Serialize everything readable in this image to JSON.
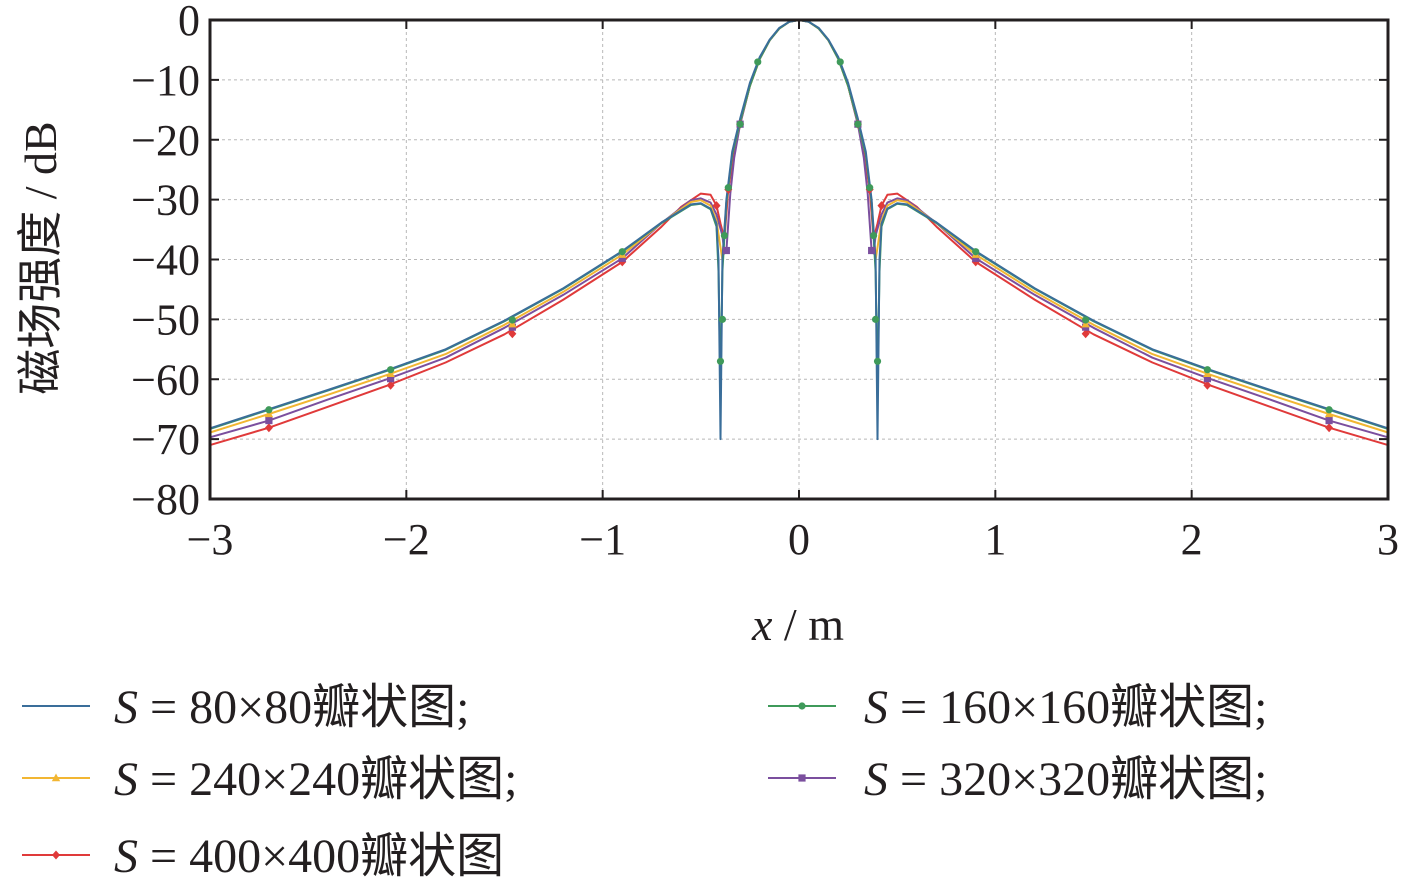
{
  "chart_data": {
    "type": "line",
    "xlabel": "x / m",
    "xlabel_var": "x",
    "xlabel_unit": " / m",
    "ylabel": "磁场强度 / dB",
    "xlim": [
      -3,
      3
    ],
    "ylim": [
      -80,
      0
    ],
    "xticks": [
      -3,
      -2,
      -1,
      0,
      1,
      2,
      3
    ],
    "xtick_labels": [
      "−3",
      "−2",
      "−1",
      "0",
      "1",
      "2",
      "3"
    ],
    "yticks": [
      0,
      -10,
      -20,
      -30,
      -40,
      -50,
      -60,
      -70,
      -80
    ],
    "ytick_labels": [
      "0",
      "−10",
      "−20",
      "−30",
      "−40",
      "−50",
      "−60",
      "−70",
      "−80"
    ],
    "grid": true,
    "legend_position": "bottom",
    "legend_symbol": "S",
    "series": [
      {
        "name": "S = 80×80瓣状图;",
        "label_rest": " = 80×80瓣状图;",
        "color": "#3a6e9a",
        "marker": "none",
        "points": [
          [
            -3,
            -68.2
          ],
          [
            -2.7,
            -65.0
          ],
          [
            -2.4,
            -61.8
          ],
          [
            -2.1,
            -58.5
          ],
          [
            -1.8,
            -55.0
          ],
          [
            -1.5,
            -50.2
          ],
          [
            -1.2,
            -44.8
          ],
          [
            -0.9,
            -38.6
          ],
          [
            -0.7,
            -33.8
          ],
          [
            -0.55,
            -30.8
          ],
          [
            -0.5,
            -30.6
          ],
          [
            -0.45,
            -31.5
          ],
          [
            -0.42,
            -34
          ],
          [
            -0.41,
            -40
          ],
          [
            -0.4,
            -70
          ],
          [
            -0.39,
            -40
          ],
          [
            -0.37,
            -30
          ],
          [
            -0.34,
            -22
          ],
          [
            -0.3,
            -16.5
          ],
          [
            -0.25,
            -10.5
          ],
          [
            -0.2,
            -6.2
          ],
          [
            -0.15,
            -3.3
          ],
          [
            -0.1,
            -1.3
          ],
          [
            -0.05,
            -0.3
          ],
          [
            0,
            0
          ],
          [
            0.05,
            -0.3
          ],
          [
            0.1,
            -1.3
          ],
          [
            0.15,
            -3.3
          ],
          [
            0.2,
            -6.2
          ],
          [
            0.25,
            -10.5
          ],
          [
            0.3,
            -16.5
          ],
          [
            0.34,
            -22
          ],
          [
            0.37,
            -30
          ],
          [
            0.39,
            -40
          ],
          [
            0.4,
            -70
          ],
          [
            0.41,
            -40
          ],
          [
            0.42,
            -34
          ],
          [
            0.45,
            -31.5
          ],
          [
            0.5,
            -30.6
          ],
          [
            0.55,
            -30.8
          ],
          [
            0.7,
            -33.8
          ],
          [
            0.9,
            -38.6
          ],
          [
            1.2,
            -44.8
          ],
          [
            1.5,
            -50.2
          ],
          [
            1.8,
            -55.0
          ],
          [
            2.1,
            -58.5
          ],
          [
            2.4,
            -61.8
          ],
          [
            2.7,
            -65.0
          ],
          [
            3,
            -68.2
          ]
        ]
      },
      {
        "name": "S = 160×160瓣状图;",
        "label_rest": " = 160×160瓣状图;",
        "color": "#3f9a5a",
        "marker": "circle",
        "markers": [
          [
            -2.7,
            -65.1
          ],
          [
            -2.08,
            -58.4
          ],
          [
            -1.46,
            -50.1
          ],
          [
            -0.9,
            -38.7
          ],
          [
            -0.4,
            -57
          ],
          [
            -0.39,
            -50
          ],
          [
            -0.38,
            -36
          ],
          [
            -0.36,
            -28
          ],
          [
            -0.3,
            -17.4
          ],
          [
            -0.21,
            -7
          ],
          [
            0.21,
            -7
          ],
          [
            0.3,
            -17.4
          ],
          [
            0.36,
            -28
          ],
          [
            0.38,
            -36
          ],
          [
            0.39,
            -50
          ],
          [
            0.4,
            -57
          ],
          [
            0.9,
            -38.7
          ],
          [
            1.46,
            -50.1
          ],
          [
            2.08,
            -58.4
          ],
          [
            2.7,
            -65.1
          ]
        ],
        "points": [
          [
            -3,
            -68.3
          ],
          [
            -2.7,
            -65.1
          ],
          [
            -2.4,
            -61.9
          ],
          [
            -2.1,
            -58.6
          ],
          [
            -1.8,
            -55.1
          ],
          [
            -1.5,
            -50.3
          ],
          [
            -1.2,
            -44.9
          ],
          [
            -0.9,
            -38.7
          ],
          [
            -0.7,
            -33.9
          ],
          [
            -0.55,
            -30.9
          ],
          [
            -0.5,
            -30.7
          ],
          [
            -0.45,
            -31.6
          ],
          [
            -0.42,
            -34.5
          ],
          [
            -0.41,
            -42
          ],
          [
            -0.4,
            -62
          ],
          [
            -0.39,
            -42
          ],
          [
            -0.37,
            -30.5
          ],
          [
            -0.34,
            -22.5
          ],
          [
            -0.3,
            -17.0
          ],
          [
            -0.25,
            -11
          ],
          [
            -0.2,
            -6.5
          ],
          [
            -0.15,
            -3.4
          ],
          [
            -0.1,
            -1.4
          ],
          [
            -0.05,
            -0.3
          ],
          [
            0,
            0
          ],
          [
            0.05,
            -0.3
          ],
          [
            0.1,
            -1.4
          ],
          [
            0.15,
            -3.4
          ],
          [
            0.2,
            -6.5
          ],
          [
            0.25,
            -11
          ],
          [
            0.3,
            -17.0
          ],
          [
            0.34,
            -22.5
          ],
          [
            0.37,
            -30.5
          ],
          [
            0.39,
            -42
          ],
          [
            0.4,
            -62
          ],
          [
            0.41,
            -42
          ],
          [
            0.42,
            -34.5
          ],
          [
            0.45,
            -31.6
          ],
          [
            0.5,
            -30.7
          ],
          [
            0.55,
            -30.9
          ],
          [
            0.7,
            -33.9
          ],
          [
            0.9,
            -38.7
          ],
          [
            1.2,
            -44.9
          ],
          [
            1.5,
            -50.3
          ],
          [
            1.8,
            -55.1
          ],
          [
            2.1,
            -58.6
          ],
          [
            2.4,
            -61.9
          ],
          [
            2.7,
            -65.1
          ],
          [
            3,
            -68.3
          ]
        ]
      },
      {
        "name": "S = 240×240瓣状图;",
        "label_rest": " = 240×240瓣状图;",
        "color": "#f2b632",
        "marker": "triangle",
        "markers": [
          [
            -2.7,
            -65.8
          ],
          [
            -2.08,
            -59.1
          ],
          [
            -1.46,
            -50.8
          ],
          [
            -0.9,
            -39.2
          ],
          [
            0.9,
            -39.2
          ],
          [
            1.46,
            -50.8
          ],
          [
            2.08,
            -59.1
          ],
          [
            2.7,
            -65.8
          ]
        ],
        "points": [
          [
            -3,
            -68.9
          ],
          [
            -2.7,
            -65.8
          ],
          [
            -2.4,
            -62.6
          ],
          [
            -2.1,
            -59.3
          ],
          [
            -1.8,
            -55.8
          ],
          [
            -1.5,
            -50.9
          ],
          [
            -1.2,
            -45.4
          ],
          [
            -0.9,
            -39.2
          ],
          [
            -0.7,
            -33.9
          ],
          [
            -0.55,
            -30.4
          ],
          [
            -0.5,
            -30.1
          ],
          [
            -0.45,
            -31.0
          ],
          [
            -0.42,
            -33.5
          ],
          [
            -0.4,
            -38
          ],
          [
            -0.39,
            -40
          ],
          [
            -0.37,
            -30.5
          ],
          [
            -0.34,
            -22.5
          ],
          [
            -0.3,
            -17.0
          ],
          [
            -0.25,
            -11
          ],
          [
            -0.2,
            -6.5
          ],
          [
            -0.15,
            -3.4
          ],
          [
            -0.1,
            -1.4
          ],
          [
            -0.05,
            -0.3
          ],
          [
            0,
            0
          ],
          [
            0.05,
            -0.3
          ],
          [
            0.1,
            -1.4
          ],
          [
            0.15,
            -3.4
          ],
          [
            0.2,
            -6.5
          ],
          [
            0.25,
            -11
          ],
          [
            0.3,
            -17.0
          ],
          [
            0.34,
            -22.5
          ],
          [
            0.37,
            -30.5
          ],
          [
            0.39,
            -40
          ],
          [
            0.4,
            -38
          ],
          [
            0.42,
            -33.5
          ],
          [
            0.45,
            -31.0
          ],
          [
            0.5,
            -30.1
          ],
          [
            0.55,
            -30.4
          ],
          [
            0.7,
            -33.9
          ],
          [
            0.9,
            -39.2
          ],
          [
            1.2,
            -45.4
          ],
          [
            1.5,
            -50.9
          ],
          [
            1.8,
            -55.8
          ],
          [
            2.1,
            -59.3
          ],
          [
            2.4,
            -62.6
          ],
          [
            2.7,
            -65.8
          ],
          [
            3,
            -68.9
          ]
        ]
      },
      {
        "name": "S = 320×320瓣状图;",
        "label_rest": " = 320×320瓣状图;",
        "color": "#7b4f9e",
        "marker": "square",
        "markers": [
          [
            -2.7,
            -66.9
          ],
          [
            -2.08,
            -59.9
          ],
          [
            -1.46,
            -51.3
          ],
          [
            -0.9,
            -39.8
          ],
          [
            -0.37,
            -38.5
          ],
          [
            -0.3,
            -17.4
          ],
          [
            0.3,
            -17.4
          ],
          [
            0.37,
            -38.5
          ],
          [
            0.9,
            -39.8
          ],
          [
            1.46,
            -51.3
          ],
          [
            2.08,
            -59.9
          ],
          [
            2.7,
            -66.9
          ]
        ],
        "points": [
          [
            -3,
            -69.7
          ],
          [
            -2.7,
            -66.9
          ],
          [
            -2.4,
            -63.4
          ],
          [
            -2.1,
            -60.0
          ],
          [
            -1.8,
            -56.4
          ],
          [
            -1.5,
            -51.4
          ],
          [
            -1.2,
            -45.9
          ],
          [
            -0.9,
            -39.8
          ],
          [
            -0.7,
            -33.9
          ],
          [
            -0.55,
            -30.1
          ],
          [
            -0.5,
            -29.8
          ],
          [
            -0.45,
            -30.5
          ],
          [
            -0.42,
            -32.5
          ],
          [
            -0.39,
            -36
          ],
          [
            -0.38,
            -39
          ],
          [
            -0.37,
            -38.5
          ],
          [
            -0.35,
            -29
          ],
          [
            -0.33,
            -23
          ],
          [
            -0.3,
            -17.4
          ],
          [
            -0.25,
            -11
          ],
          [
            -0.2,
            -6.5
          ],
          [
            -0.15,
            -3.4
          ],
          [
            -0.1,
            -1.4
          ],
          [
            -0.05,
            -0.3
          ],
          [
            0,
            0
          ],
          [
            0.05,
            -0.3
          ],
          [
            0.1,
            -1.4
          ],
          [
            0.15,
            -3.4
          ],
          [
            0.2,
            -6.5
          ],
          [
            0.25,
            -11
          ],
          [
            0.3,
            -17.4
          ],
          [
            0.33,
            -23
          ],
          [
            0.35,
            -29
          ],
          [
            0.37,
            -38.5
          ],
          [
            0.38,
            -39
          ],
          [
            0.39,
            -36
          ],
          [
            0.42,
            -32.5
          ],
          [
            0.45,
            -30.5
          ],
          [
            0.5,
            -29.8
          ],
          [
            0.55,
            -30.1
          ],
          [
            0.7,
            -33.9
          ],
          [
            0.9,
            -39.8
          ],
          [
            1.2,
            -45.9
          ],
          [
            1.5,
            -51.4
          ],
          [
            1.8,
            -56.4
          ],
          [
            2.1,
            -60.0
          ],
          [
            2.4,
            -63.4
          ],
          [
            2.7,
            -66.9
          ],
          [
            3,
            -69.7
          ]
        ]
      },
      {
        "name": "S = 400×400瓣状图",
        "label_rest": " = 400×400瓣状图",
        "color": "#e03a3a",
        "marker": "diamond",
        "markers": [
          [
            -2.7,
            -68.1
          ],
          [
            -2.08,
            -61.0
          ],
          [
            -1.46,
            -52.4
          ],
          [
            -0.9,
            -40.4
          ],
          [
            -0.42,
            -31
          ],
          [
            -0.36,
            -28.3
          ],
          [
            -0.3,
            -17.4
          ],
          [
            0.3,
            -17.4
          ],
          [
            0.36,
            -28.3
          ],
          [
            0.42,
            -31
          ],
          [
            0.9,
            -40.4
          ],
          [
            1.46,
            -52.4
          ],
          [
            2.08,
            -61.0
          ],
          [
            2.7,
            -68.1
          ]
        ],
        "points": [
          [
            -3,
            -71.0
          ],
          [
            -2.7,
            -68.1
          ],
          [
            -2.4,
            -64.6
          ],
          [
            -2.1,
            -61.1
          ],
          [
            -1.8,
            -57.2
          ],
          [
            -1.5,
            -52.5
          ],
          [
            -1.2,
            -46.7
          ],
          [
            -0.9,
            -40.4
          ],
          [
            -0.7,
            -34.5
          ],
          [
            -0.6,
            -31.2
          ],
          [
            -0.5,
            -29.0
          ],
          [
            -0.45,
            -29.2
          ],
          [
            -0.42,
            -31
          ],
          [
            -0.4,
            -34
          ],
          [
            -0.38,
            -36.5
          ],
          [
            -0.36,
            -28.3
          ],
          [
            -0.33,
            -22
          ],
          [
            -0.3,
            -17.4
          ],
          [
            -0.25,
            -11
          ],
          [
            -0.2,
            -6.5
          ],
          [
            -0.15,
            -3.4
          ],
          [
            -0.1,
            -1.4
          ],
          [
            -0.05,
            -0.3
          ],
          [
            0,
            0
          ],
          [
            0.05,
            -0.3
          ],
          [
            0.1,
            -1.4
          ],
          [
            0.15,
            -3.4
          ],
          [
            0.2,
            -6.5
          ],
          [
            0.25,
            -11
          ],
          [
            0.3,
            -17.4
          ],
          [
            0.33,
            -22
          ],
          [
            0.36,
            -28.3
          ],
          [
            0.38,
            -36.5
          ],
          [
            0.4,
            -34
          ],
          [
            0.42,
            -31
          ],
          [
            0.45,
            -29.2
          ],
          [
            0.5,
            -29.0
          ],
          [
            0.6,
            -31.2
          ],
          [
            0.7,
            -34.5
          ],
          [
            0.9,
            -40.4
          ],
          [
            1.2,
            -46.7
          ],
          [
            1.5,
            -52.5
          ],
          [
            1.8,
            -57.2
          ],
          [
            2.1,
            -61.1
          ],
          [
            2.4,
            -64.6
          ],
          [
            2.7,
            -68.1
          ],
          [
            3,
            -71.0
          ]
        ]
      }
    ]
  }
}
